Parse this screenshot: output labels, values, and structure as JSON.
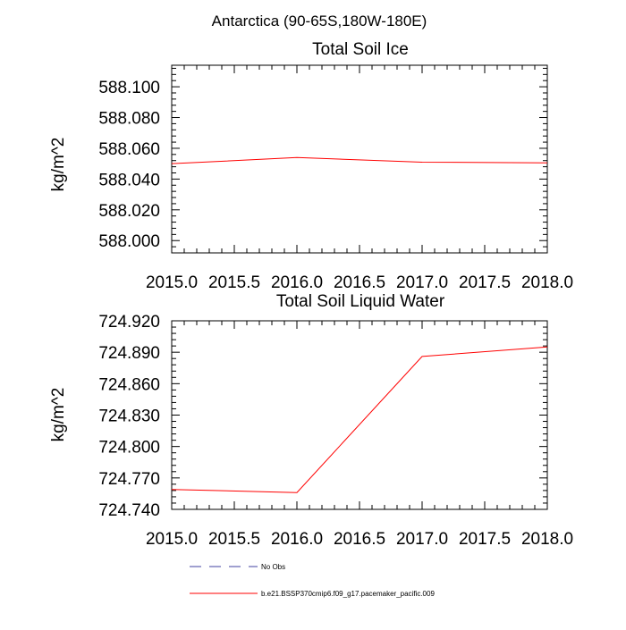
{
  "header": {
    "title": "Antarctica (90-65S,180W-180E)"
  },
  "chart_data": [
    {
      "type": "line",
      "title": "Total Soil Ice",
      "xlabel": "",
      "ylabel": "kg/m^2",
      "xlim": [
        2015.0,
        2018.0
      ],
      "ylim": [
        587.992,
        588.114
      ],
      "x_ticks": [
        "2015.0",
        "2015.5",
        "2016.0",
        "2016.5",
        "2017.0",
        "2017.5",
        "2018.0"
      ],
      "y_ticks": [
        "588.000",
        "588.020",
        "588.040",
        "588.060",
        "588.080",
        "588.100"
      ],
      "grid": false,
      "series": [
        {
          "name": "b.e21.BSSP370cmip6.f09_g17.pacemaker_pacific.009",
          "color": "#ff0000",
          "x": [
            2015,
            2016,
            2017,
            2018
          ],
          "y": [
            588.05,
            588.054,
            588.051,
            588.0505
          ]
        }
      ]
    },
    {
      "type": "line",
      "title": "Total Soil Liquid Water",
      "xlabel": "",
      "ylabel": "kg/m^2",
      "xlim": [
        2015.0,
        2018.0
      ],
      "ylim": [
        724.74,
        724.92
      ],
      "x_ticks": [
        "2015.0",
        "2015.5",
        "2016.0",
        "2016.5",
        "2017.0",
        "2017.5",
        "2018.0"
      ],
      "y_ticks": [
        "724.740",
        "724.770",
        "724.800",
        "724.830",
        "724.860",
        "724.890",
        "724.920"
      ],
      "grid": false,
      "series": [
        {
          "name": "b.e21.BSSP370cmip6.f09_g17.pacemaker_pacific.009",
          "color": "#ff0000",
          "x": [
            2015,
            2016,
            2017,
            2018
          ],
          "y": [
            724.759,
            724.756,
            724.886,
            724.895
          ]
        }
      ]
    }
  ],
  "legend": {
    "placement": "bottom",
    "items": [
      {
        "label": "No Obs",
        "color": "#4040a0",
        "style": "dashed"
      },
      {
        "label": "b.e21.BSSP370cmip6.f09_g17.pacemaker_pacific.009",
        "color": "#ff0000",
        "style": "solid"
      }
    ]
  }
}
